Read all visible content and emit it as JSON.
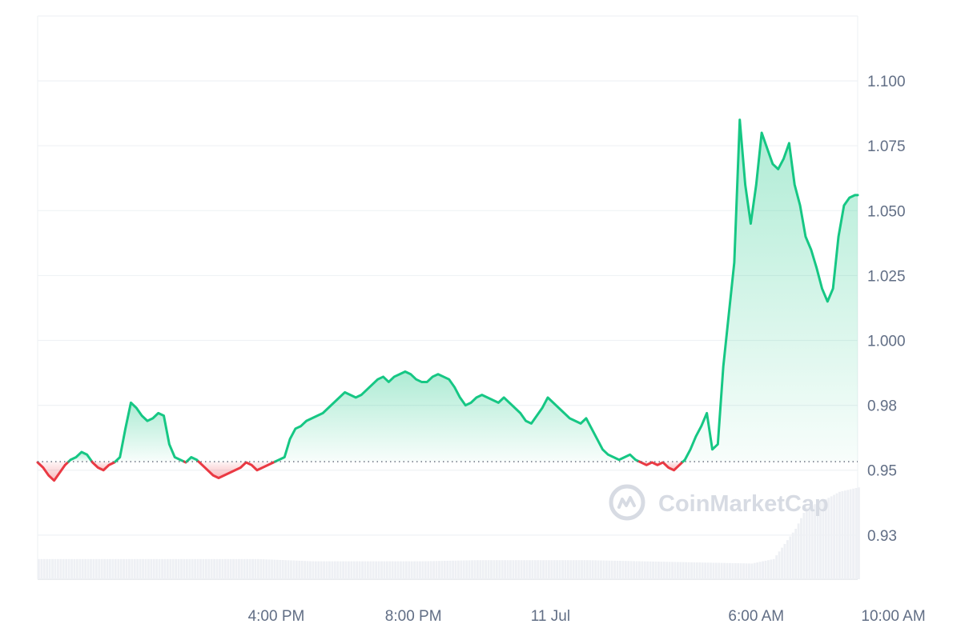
{
  "chart_data": {
    "type": "area",
    "baseline": 0.9533,
    "ylim": [
      0.908,
      1.125
    ],
    "yticks": [
      {
        "value": 1.1,
        "label": "1.100"
      },
      {
        "value": 1.075,
        "label": "1.075"
      },
      {
        "value": 1.05,
        "label": "1.050"
      },
      {
        "value": 1.025,
        "label": "1.025"
      },
      {
        "value": 1.0,
        "label": "1.000"
      },
      {
        "value": 0.975,
        "label": "0.98"
      },
      {
        "value": 0.95,
        "label": "0.95"
      },
      {
        "value": 0.925,
        "label": "0.93"
      }
    ],
    "xlim": [
      -4.35,
      10.6
    ],
    "xticks": [
      {
        "value": 0,
        "label": "4:00 PM"
      },
      {
        "value": 2.5,
        "label": "8:00 PM"
      },
      {
        "value": 5,
        "label": "11 Jul"
      },
      {
        "value": 8.75,
        "label": "6:00 AM"
      },
      {
        "value": 11.25,
        "label": "10:00 AM"
      }
    ],
    "series": [
      {
        "x": [
          -4.35,
          -4.25,
          -4.15,
          -4.05,
          -3.95,
          -3.85,
          -3.75,
          -3.65,
          -3.55,
          -3.45,
          -3.35,
          -3.25,
          -3.15,
          -3.05,
          -2.95,
          -2.85,
          -2.75,
          -2.65,
          -2.55,
          -2.45,
          -2.35,
          -2.25,
          -2.15,
          -2.05,
          -1.95,
          -1.85,
          -1.75,
          -1.65,
          -1.55,
          -1.45,
          -1.35,
          -1.25,
          -1.15,
          -1.05,
          -0.95,
          -0.85,
          -0.75,
          -0.65,
          -0.55,
          -0.45,
          -0.35,
          -0.25,
          -0.15,
          -0.05,
          0.05,
          0.15,
          0.25,
          0.35,
          0.45,
          0.55,
          0.65,
          0.75,
          0.85,
          0.95,
          1.05,
          1.15,
          1.25,
          1.35,
          1.45,
          1.55,
          1.65,
          1.75,
          1.85,
          1.95,
          2.05,
          2.15,
          2.25,
          2.35,
          2.45,
          2.55,
          2.65,
          2.75,
          2.85,
          2.95,
          3.05,
          3.15,
          3.25,
          3.35,
          3.45,
          3.55,
          3.65,
          3.75,
          3.85,
          3.95,
          4.05,
          4.15,
          4.25,
          4.35,
          4.45,
          4.55,
          4.65,
          4.75,
          4.85,
          4.95,
          5.05,
          5.15,
          5.25,
          5.35,
          5.45,
          5.55,
          5.65,
          5.75,
          5.85,
          5.95,
          6.05,
          6.15,
          6.25,
          6.35,
          6.45,
          6.55,
          6.65,
          6.75,
          6.85,
          6.95,
          7.05,
          7.15,
          7.25,
          7.35,
          7.45,
          7.55,
          7.65,
          7.75,
          7.85,
          7.95,
          8.05,
          8.15,
          8.25,
          8.35,
          8.45,
          8.55,
          8.65,
          8.75,
          8.85,
          8.95,
          9.05,
          9.15,
          9.25,
          9.35,
          9.45,
          9.55,
          9.65,
          9.75,
          9.85,
          9.95,
          10.05,
          10.15,
          10.25,
          10.35,
          10.45,
          10.55,
          10.6
        ],
        "values": [
          0.953,
          0.951,
          0.948,
          0.946,
          0.949,
          0.952,
          0.954,
          0.955,
          0.957,
          0.956,
          0.953,
          0.951,
          0.95,
          0.952,
          0.953,
          0.955,
          0.966,
          0.976,
          0.974,
          0.971,
          0.969,
          0.97,
          0.972,
          0.971,
          0.96,
          0.955,
          0.954,
          0.953,
          0.955,
          0.954,
          0.952,
          0.95,
          0.948,
          0.947,
          0.948,
          0.949,
          0.95,
          0.951,
          0.953,
          0.952,
          0.95,
          0.951,
          0.952,
          0.953,
          0.954,
          0.955,
          0.962,
          0.966,
          0.967,
          0.969,
          0.97,
          0.971,
          0.972,
          0.974,
          0.976,
          0.978,
          0.98,
          0.979,
          0.978,
          0.979,
          0.981,
          0.983,
          0.985,
          0.986,
          0.984,
          0.986,
          0.987,
          0.988,
          0.987,
          0.985,
          0.984,
          0.984,
          0.986,
          0.987,
          0.986,
          0.985,
          0.982,
          0.978,
          0.975,
          0.976,
          0.978,
          0.979,
          0.978,
          0.977,
          0.976,
          0.978,
          0.976,
          0.974,
          0.972,
          0.969,
          0.968,
          0.971,
          0.974,
          0.978,
          0.976,
          0.974,
          0.972,
          0.97,
          0.969,
          0.968,
          0.97,
          0.966,
          0.962,
          0.958,
          0.956,
          0.955,
          0.954,
          0.955,
          0.956,
          0.954,
          0.953,
          0.952,
          0.953,
          0.952,
          0.953,
          0.951,
          0.95,
          0.952,
          0.954,
          0.958,
          0.963,
          0.967,
          0.972,
          0.958,
          0.96,
          0.99,
          1.01,
          1.03,
          1.085,
          1.06,
          1.045,
          1.06,
          1.08,
          1.074,
          1.068,
          1.066,
          1.07,
          1.076,
          1.06,
          1.052,
          1.04,
          1.035,
          1.028,
          1.02,
          1.015,
          1.02,
          1.04,
          1.052,
          1.055,
          1.056,
          1.056
        ]
      }
    ],
    "volume": {
      "x": [
        -4.35,
        -3.35,
        -2.35,
        -1.35,
        -0.35,
        0.65,
        1.65,
        2.65,
        3.65,
        4.65,
        5.65,
        6.65,
        7.65,
        8.65,
        9.05,
        9.45,
        9.65,
        9.95,
        10.25,
        10.6
      ],
      "values": [
        18,
        18,
        18,
        18,
        18,
        16,
        16,
        16,
        17,
        17,
        17,
        16,
        15,
        14,
        18,
        45,
        64,
        70,
        78,
        82
      ]
    },
    "line_color_up": "#16c784",
    "line_color_down": "#ea3943",
    "fill_color_up": "#16c784",
    "fill_color_down": "#ea3943",
    "grid": true
  },
  "watermark": {
    "text": "CoinMarketCap",
    "icon": "coinmarketcap-logo-icon",
    "color": "#d7dbe3"
  }
}
